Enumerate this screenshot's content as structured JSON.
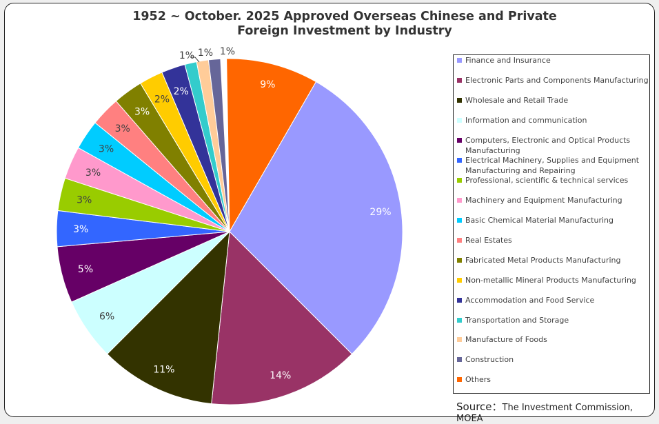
{
  "chart_data": {
    "type": "pie",
    "title": "1952 ~  October. 2025 Approved Overseas Chinese and Private Foreign Investment by Industry",
    "title_line1": "1952 ~  October. 2025 Approved Overseas Chinese and Private",
    "title_line2": "Foreign Investment by Industry",
    "legend_position": "right",
    "categories": [
      "Finance and Insurance",
      "Electronic Parts and Components Manufacturing",
      "Wholesale and Retail Trade",
      "Information and communication",
      "Computers, Electronic and Optical Products Manufacturing",
      "Electrical Machinery, Supplies and Equipment Manufacturing and Repairing",
      "Professional, scientific & technical services",
      "Machinery and Equipment Manufacturing",
      "Basic Chemical Material Manufacturing",
      "Real Estates",
      "Fabricated Metal Products Manufacturing",
      "Non-metallic Mineral Products Manufacturing",
      "Accommodation and Food Service",
      "Transportation and Storage",
      "Manufacture of Foods",
      "Construction",
      "Others"
    ],
    "values": [
      29,
      14,
      11,
      6,
      5,
      3,
      3,
      3,
      3,
      3,
      3,
      2,
      2,
      1,
      1,
      1,
      9
    ],
    "labels": [
      "29%",
      "14%",
      "11%",
      "6%",
      "5%",
      "3%",
      "3%",
      "3%",
      "3%",
      "3%",
      "3%",
      "2%",
      "2%",
      "1%",
      "1%",
      "1%",
      "9%"
    ],
    "sweep_degrees": [
      105,
      51,
      39,
      21,
      19,
      12,
      11,
      11,
      10,
      10,
      10,
      8,
      8,
      4,
      4,
      4,
      31
    ],
    "colors": [
      "#9999ff",
      "#993366",
      "#333300",
      "#ccffff",
      "#660066",
      "#3366ff",
      "#99cc00",
      "#ff99cc",
      "#00ccff",
      "#ff8080",
      "#808000",
      "#ffcc00",
      "#333399",
      "#33cccc",
      "#ffcc99",
      "#666699",
      "#ff6600"
    ],
    "label_colors": [
      "#ffffff",
      "#ffffff",
      "#ffffff",
      "#404040",
      "#ffffff",
      "#ffffff",
      "#404040",
      "#404040",
      "#404040",
      "#404040",
      "#ffffff",
      "#404040",
      "#ffffff",
      "#404040",
      "#404040",
      "#404040",
      "#ffffff"
    ],
    "start_angle_deg": -1
  },
  "legend": {
    "items": [
      "Finance and Insurance",
      "Electronic Parts and Components Manufacturing",
      "Wholesale and Retail Trade",
      "Information and communication",
      "Computers, Electronic and Optical Products Manufacturing",
      "Electrical Machinery, Supplies and Equipment Manufacturing and Repairing",
      "Professional, scientific & technical services",
      "Machinery and Equipment Manufacturing",
      "Basic Chemical Material Manufacturing",
      "Real Estates",
      "Fabricated Metal Products Manufacturing",
      "Non-metallic Mineral Products Manufacturing",
      "Accommodation and Food Service",
      "Transportation and Storage",
      "Manufacture of Foods",
      "Construction",
      "Others"
    ]
  },
  "source": {
    "prefix": "Source：",
    "text": "The Investment Commission, MOEA"
  }
}
